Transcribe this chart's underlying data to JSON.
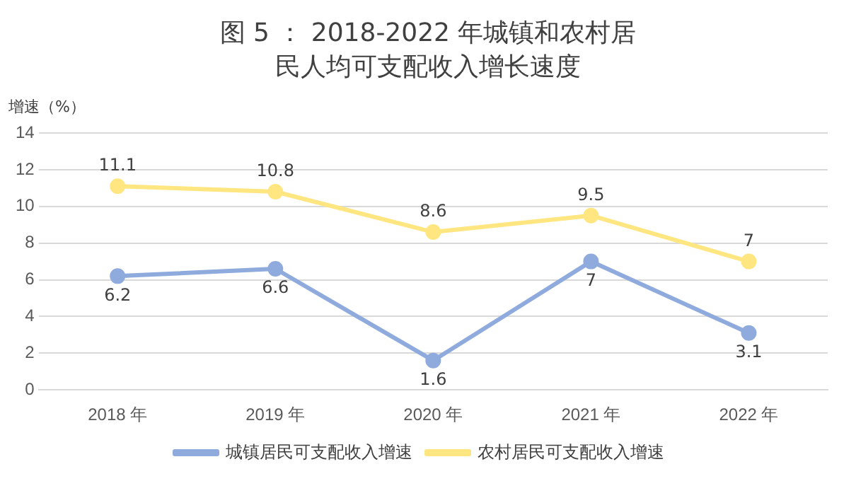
{
  "chart_data": {
    "type": "line",
    "title": "图 5 ： 2018-2022 年城镇和农村居民人均可支配收入增长速度",
    "ylabel": "增速（%）",
    "categories": [
      "2018 年",
      "2019 年",
      "2020 年",
      "2021 年",
      "2022 年"
    ],
    "series": [
      {
        "name": "城镇居民可支配收入增速",
        "color": "#8faadc",
        "values": [
          6.2,
          6.6,
          1.6,
          7,
          3.1
        ]
      },
      {
        "name": "农村居民可支配收入增速",
        "color": "#ffe680",
        "values": [
          11.1,
          10.8,
          8.6,
          9.5,
          7
        ]
      }
    ],
    "ylim": [
      0,
      14
    ],
    "yticks": [
      0,
      2,
      4,
      6,
      8,
      10,
      12,
      14
    ],
    "grid": "y",
    "legend": "bottom",
    "marker": "circle",
    "line_style": "solid",
    "data_labels": true
  }
}
